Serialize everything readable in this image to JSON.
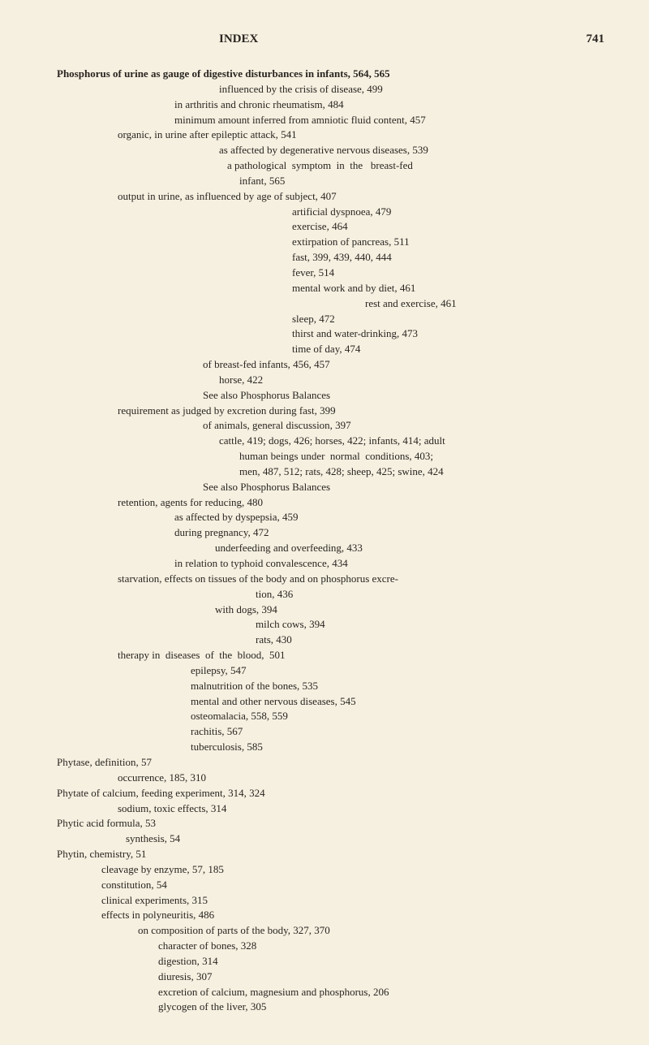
{
  "header": {
    "title": "INDEX",
    "page_number": "741"
  },
  "entries": [
    {
      "text": "Phosphorus of urine as gauge of digestive disturbances in infants, 564, 565",
      "indent": 0,
      "bold": true
    },
    {
      "text": "influenced by the crisis of disease, 499",
      "indent": 200
    },
    {
      "text": "in arthritis and chronic rheumatism, 484",
      "indent": 145
    },
    {
      "text": "minimum amount inferred from amniotic fluid content, 457",
      "indent": 145
    },
    {
      "text": "organic, in urine after epileptic attack, 541",
      "indent": 75
    },
    {
      "text": "as affected by degenerative nervous diseases, 539",
      "indent": 200
    },
    {
      "text": "a pathological  symptom  in  the   breast-fed",
      "indent": 210
    },
    {
      "text": "infant, 565",
      "indent": 225
    },
    {
      "text": "output in urine, as influenced by age of subject, 407",
      "indent": 75
    },
    {
      "text": "artificial dyspnoea, 479",
      "indent": 290
    },
    {
      "text": "exercise, 464",
      "indent": 290
    },
    {
      "text": "extirpation of pancreas, 511",
      "indent": 290
    },
    {
      "text": "fast, 399, 439, 440, 444",
      "indent": 290
    },
    {
      "text": "fever, 514",
      "indent": 290
    },
    {
      "text": "mental work and by diet, 461",
      "indent": 290
    },
    {
      "text": "rest and exercise, 461",
      "indent": 380
    },
    {
      "text": "sleep, 472",
      "indent": 290
    },
    {
      "text": "thirst and water-drinking, 473",
      "indent": 290
    },
    {
      "text": "time of day, 474",
      "indent": 290
    },
    {
      "text": "of breast-fed infants, 456, 457",
      "indent": 180
    },
    {
      "text": "horse, 422",
      "indent": 200
    },
    {
      "text": "See also Phosphorus Balances",
      "indent": 180
    },
    {
      "text": "requirement as judged by excretion during fast, 399",
      "indent": 75
    },
    {
      "text": "of animals, general discussion, 397",
      "indent": 180
    },
    {
      "text": "cattle, 419; dogs, 426; horses, 422; infants, 414; adult",
      "indent": 200
    },
    {
      "text": "human beings under  normal  conditions, 403;",
      "indent": 225
    },
    {
      "text": "men, 487, 512; rats, 428; sheep, 425; swine, 424",
      "indent": 225
    },
    {
      "text": "See also Phosphorus Balances",
      "indent": 180
    },
    {
      "text": "retention, agents for reducing, 480",
      "indent": 75
    },
    {
      "text": "as affected by dyspepsia, 459",
      "indent": 145
    },
    {
      "text": "during pregnancy, 472",
      "indent": 145
    },
    {
      "text": "underfeeding and overfeeding, 433",
      "indent": 195
    },
    {
      "text": "in relation to typhoid convalescence, 434",
      "indent": 145
    },
    {
      "text": "starvation, effects on tissues of the body and on phosphorus excre-",
      "indent": 75
    },
    {
      "text": "tion, 436",
      "indent": 245
    },
    {
      "text": "with dogs, 394",
      "indent": 195
    },
    {
      "text": "milch cows, 394",
      "indent": 245
    },
    {
      "text": "rats, 430",
      "indent": 245
    },
    {
      "text": "therapy in  diseases  of  the  blood,  501",
      "indent": 75
    },
    {
      "text": "epilepsy, 547",
      "indent": 165
    },
    {
      "text": "malnutrition of the bones, 535",
      "indent": 165
    },
    {
      "text": "mental and other nervous diseases, 545",
      "indent": 165
    },
    {
      "text": "osteomalacia, 558, 559",
      "indent": 165
    },
    {
      "text": "rachitis, 567",
      "indent": 165
    },
    {
      "text": "tuberculosis, 585",
      "indent": 165
    },
    {
      "text": "Phytase, definition, 57",
      "indent": 0
    },
    {
      "text": "occurrence, 185, 310",
      "indent": 75
    },
    {
      "text": "Phytate of calcium, feeding experiment, 314, 324",
      "indent": 0
    },
    {
      "text": "sodium, toxic effects, 314",
      "indent": 75
    },
    {
      "text": "Phytic acid formula, 53",
      "indent": 0
    },
    {
      "text": "synthesis, 54",
      "indent": 85
    },
    {
      "text": "Phytin, chemistry, 51",
      "indent": 0
    },
    {
      "text": "cleavage by enzyme, 57, 185",
      "indent": 55
    },
    {
      "text": "constitution, 54",
      "indent": 55
    },
    {
      "text": "clinical experiments, 315",
      "indent": 55
    },
    {
      "text": "effects in polyneuritis, 486",
      "indent": 55
    },
    {
      "text": "on composition of parts of the body, 327, 370",
      "indent": 100
    },
    {
      "text": "character of bones, 328",
      "indent": 125
    },
    {
      "text": "digestion, 314",
      "indent": 125
    },
    {
      "text": "diuresis, 307",
      "indent": 125
    },
    {
      "text": "excretion of calcium, magnesium and phosphorus, 206",
      "indent": 125
    },
    {
      "text": "glycogen of the liver, 305",
      "indent": 125
    }
  ]
}
